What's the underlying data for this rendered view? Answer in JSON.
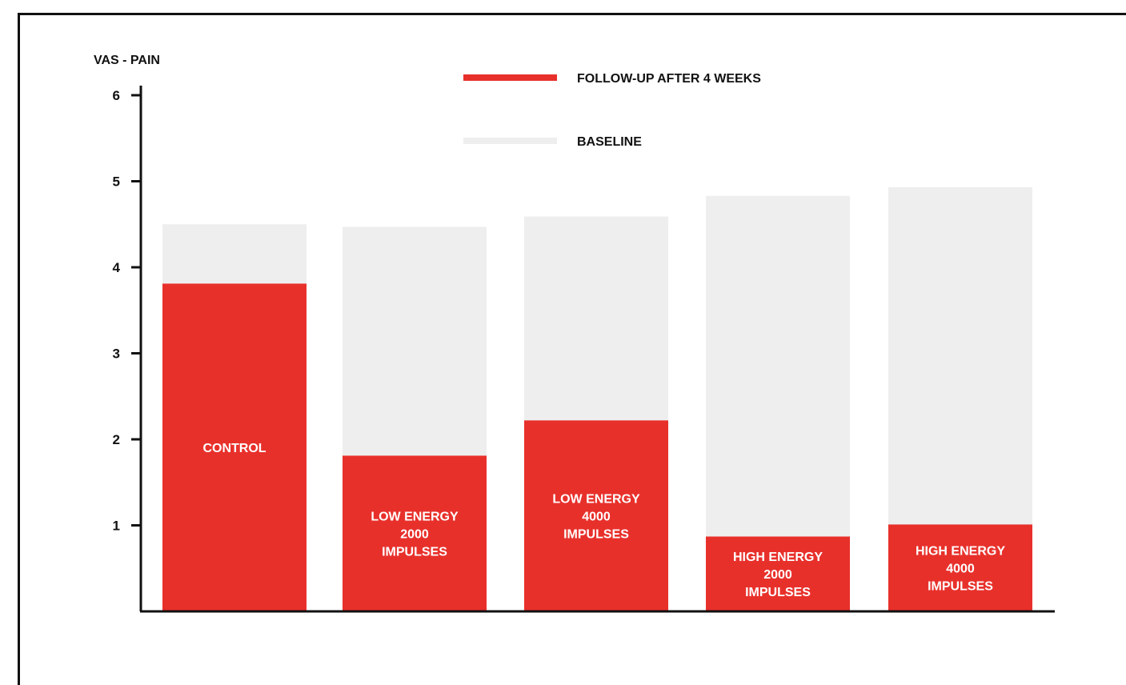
{
  "chart_data": {
    "type": "bar",
    "ylabel": "VAS - PAIN",
    "ylim": [
      0,
      6
    ],
    "yticks": [
      "1",
      "2",
      "3",
      "4",
      "5",
      "6"
    ],
    "categories": [
      [
        "CONTROL"
      ],
      [
        "LOW ENERGY",
        "2000",
        "IMPULSES"
      ],
      [
        "LOW ENERGY",
        "4000",
        "IMPULSES"
      ],
      [
        "HIGH ENERGY",
        "2000",
        "IMPULSES"
      ],
      [
        "HIGH ENERGY",
        "4000",
        "IMPULSES"
      ]
    ],
    "series": [
      {
        "name": "BASELINE",
        "values": [
          4.5,
          4.47,
          4.59,
          4.83,
          4.93
        ],
        "color": "#eeeeee"
      },
      {
        "name": "FOLLOW-UP AFTER 4 WEEKS",
        "values": [
          3.81,
          1.81,
          2.22,
          0.87,
          1.01
        ],
        "color": "#e8302b"
      }
    ],
    "legend": "top-center",
    "grid": false
  }
}
